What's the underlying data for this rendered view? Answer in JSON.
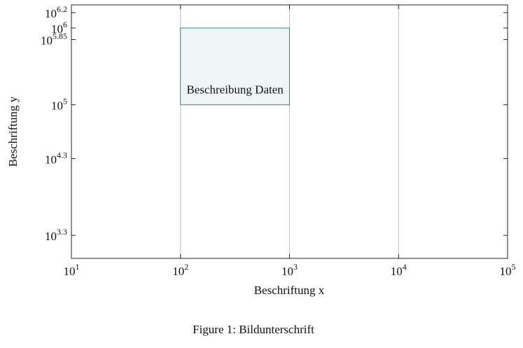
{
  "chart_data": {
    "type": "rectangle",
    "x_label": "Beschriftung x",
    "y_label": "Beschriftung y",
    "caption": "Figure 1: Bildunterschrift",
    "log_x": true,
    "log_y": true,
    "xlim": [
      10,
      100000
    ],
    "ylim": [
      1000,
      2000000
    ],
    "xticks": [
      {
        "value": 10,
        "label": [
          "10",
          "1"
        ]
      },
      {
        "value": 100,
        "label": [
          "10",
          "2"
        ]
      },
      {
        "value": 1000,
        "label": [
          "10",
          "3"
        ]
      },
      {
        "value": 10000,
        "label": [
          "10",
          "4"
        ]
      },
      {
        "value": 100000,
        "label": [
          "10",
          "5"
        ]
      }
    ],
    "yticks": [
      {
        "value": 1995.26,
        "label": [
          "10",
          "3.3"
        ]
      },
      {
        "value": 19952.6,
        "label": [
          "10",
          "4.3"
        ]
      },
      {
        "value": 100000,
        "label": [
          "10",
          "5"
        ]
      },
      {
        "value": 707946,
        "label": [
          "10",
          "5.85"
        ]
      },
      {
        "value": 1000000,
        "label": [
          "10",
          "6"
        ]
      },
      {
        "value": 1584893,
        "label": [
          "10",
          "6.2"
        ]
      }
    ],
    "grid_x": true,
    "x": [
      100,
      1000
    ],
    "y": [
      100000,
      1000000
    ],
    "annotation": "Beschreibung Daten",
    "color": "#2e8b8b",
    "fill": "#eff5f5"
  }
}
